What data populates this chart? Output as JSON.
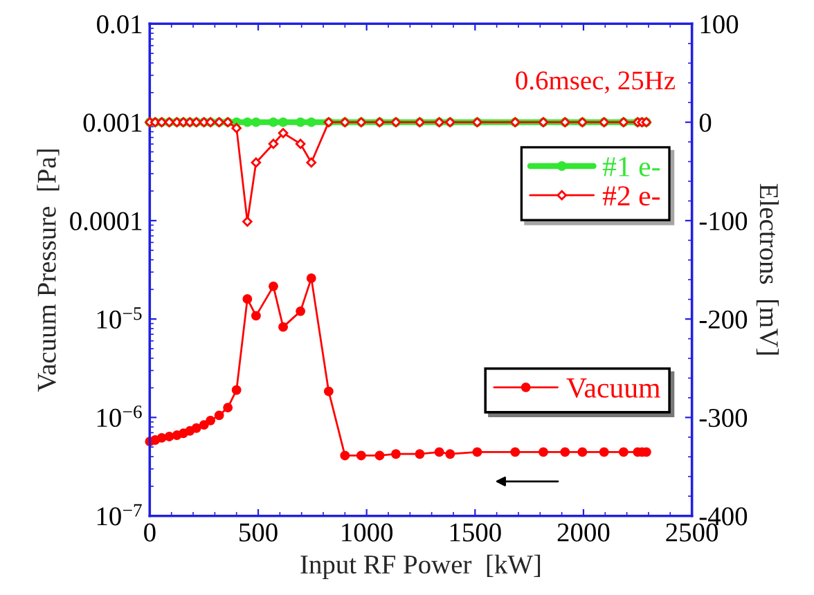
{
  "chart_data": {
    "type": "line",
    "xlabel": "Input RF Power  [kW]",
    "ylabel": "Vacuum Pressure  [Pa]",
    "y2label": "Electrons  [mV]",
    "annotations": [
      "0.6msec, 25Hz"
    ],
    "x": [
      0,
      25,
      55,
      90,
      125,
      155,
      185,
      215,
      250,
      280,
      320,
      360,
      400,
      450,
      490,
      570,
      615,
      695,
      745,
      825,
      900,
      975,
      1060,
      1135,
      1245,
      1335,
      1385,
      1510,
      1685,
      1815,
      1915,
      1995,
      2095,
      2185,
      2250,
      2270,
      2290
    ],
    "series": [
      {
        "name": "#1 e-",
        "color": "#33e633",
        "axis": "y2",
        "marker": "circle",
        "values": [
          0,
          0,
          0,
          0,
          0,
          0,
          0,
          0,
          0,
          0,
          0,
          0,
          0,
          0,
          0,
          0,
          0,
          0,
          0,
          0,
          0,
          0,
          0,
          0,
          0,
          0,
          0,
          0,
          0,
          0,
          0,
          0,
          0,
          0,
          0,
          0,
          0
        ]
      },
      {
        "name": "#2 e-",
        "color": "#ff0000",
        "axis": "y2",
        "marker": "diamond",
        "values": [
          0,
          0,
          0,
          0,
          0,
          0,
          0,
          0,
          0,
          0,
          0,
          0,
          -6,
          -101,
          -41,
          -22,
          -11,
          -22,
          -41,
          0,
          0,
          0,
          0,
          0,
          0,
          0,
          0,
          0,
          0,
          0,
          0,
          0,
          0,
          0,
          0,
          0,
          0
        ]
      },
      {
        "name": "Vacuum",
        "color": "#ff0000",
        "axis": "y",
        "marker": "circle",
        "values": [
          5.7e-07,
          5.9e-07,
          6.2e-07,
          6.4e-07,
          6.6e-07,
          6.9e-07,
          7.3e-07,
          7.8e-07,
          8.4e-07,
          9.3e-07,
          1.05e-06,
          1.26e-06,
          1.9e-06,
          1.6e-05,
          1.08e-05,
          2.15e-05,
          8.3e-06,
          1.2e-05,
          2.6e-05,
          1.84e-06,
          4.1e-07,
          4.1e-07,
          4.1e-07,
          4.25e-07,
          4.25e-07,
          4.45e-07,
          4.25e-07,
          4.45e-07,
          4.45e-07,
          4.45e-07,
          4.45e-07,
          4.45e-07,
          4.45e-07,
          4.45e-07,
          4.45e-07,
          4.45e-07,
          4.45e-07
        ]
      }
    ],
    "log": "y",
    "xlim": [
      0,
      2500
    ],
    "xticks": [
      0,
      500,
      1000,
      1500,
      2000,
      2500
    ],
    "ylim": [
      1e-07,
      0.01
    ],
    "yticks": [
      {
        "value": 1e-07,
        "label": "10$^{−7}$"
      },
      {
        "value": 1e-06,
        "label": "10$^{−6}$"
      },
      {
        "value": 1e-05,
        "label": "10$^{−5}$"
      },
      0.0001,
      0.001,
      0.01
    ],
    "y2lim": [
      -400,
      100
    ],
    "y2ticks": [
      -400,
      -300,
      -200,
      -100,
      0,
      100
    ],
    "legend": "right",
    "grid": false
  }
}
